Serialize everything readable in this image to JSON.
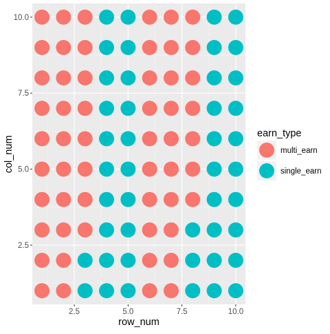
{
  "chart_data": {
    "type": "scatter",
    "title": "",
    "xlabel": "row_num",
    "ylabel": "col_num",
    "xlim": [
      0.55,
      10.45
    ],
    "ylim": [
      0.55,
      10.45
    ],
    "xticks": [
      2.5,
      5.0,
      7.5,
      10.0
    ],
    "xtick_labels": [
      "2.5",
      "5.0",
      "7.5",
      "10.0"
    ],
    "yticks": [
      2.5,
      5.0,
      7.5,
      10.0
    ],
    "ytick_labels": [
      "2.5",
      "5.0",
      "7.5",
      "10.0"
    ],
    "grid": true,
    "legend": {
      "title": "earn_type",
      "placement": "right",
      "entries": [
        "multi_earn",
        "single_earn"
      ]
    },
    "series": [
      {
        "name": "multi_earn",
        "color": "#F8766D"
      },
      {
        "name": "single_earn",
        "color": "#00BFC4"
      }
    ],
    "grid_layout": {
      "x_values": [
        1,
        2,
        3,
        4,
        5,
        6,
        7,
        8,
        9,
        10
      ],
      "y_values": [
        1,
        2,
        3,
        4,
        5,
        6,
        7,
        8,
        9,
        10
      ],
      "legend_note": "rows listed from col_num 10 (top) down to col_num 1; M = multi_earn, S = single_earn, one char per row_num 1..10",
      "rows_top_to_bottom": [
        "MMMSSMMMSS",
        "MMMSSMMMSS",
        "MMMSSMMMSS",
        "MMMSSMMMSS",
        "MMMSSMMMSS",
        "MMMSSMMMSS",
        "MMMSSMMMSS",
        "MMMSSMMSSS",
        "MMSSSMMSSS",
        "MMSSSMMSSS"
      ]
    }
  }
}
